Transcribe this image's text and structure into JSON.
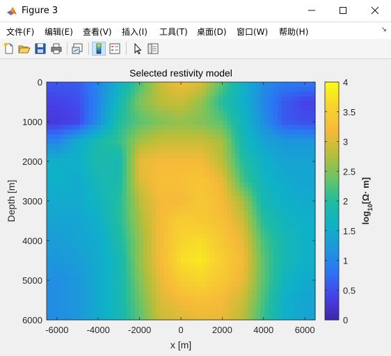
{
  "window": {
    "title": "Figure 3",
    "minimize_icon": "minimize-icon",
    "maximize_icon": "maximize-icon",
    "close_icon": "close-icon"
  },
  "menu": {
    "items": [
      "文件(F)",
      "编辑(E)",
      "查看(V)",
      "插入(I)",
      "工具(T)",
      "桌面(D)",
      "窗口(W)",
      "帮助(H)"
    ]
  },
  "toolbar": {
    "icons": [
      "new-figure-icon",
      "open-file-icon",
      "save-icon",
      "print-icon",
      "link-plot-icon",
      "insert-colorbar-icon",
      "insert-legend-icon",
      "pointer-icon",
      "property-inspector-icon"
    ]
  },
  "chart_data": {
    "type": "heatmap",
    "title": "Selected restivity model",
    "xlabel": "x [m]",
    "ylabel": "Depth [m]",
    "xlim": [
      -6500,
      6500
    ],
    "ylim": [
      0,
      6000
    ],
    "y_reversed": true,
    "xticks": [
      -6000,
      -4000,
      -2000,
      0,
      2000,
      4000,
      6000
    ],
    "yticks": [
      0,
      1000,
      2000,
      3000,
      4000,
      5000,
      6000
    ],
    "colorbar": {
      "label": "log10[Ω·m]",
      "label_base": "log",
      "label_sub": "10",
      "label_rest": "[Ω· m]",
      "range": [
        0,
        4
      ],
      "ticks": [
        0,
        0.5,
        1,
        1.5,
        2,
        2.5,
        3,
        3.5,
        4
      ],
      "colormap": "parula"
    },
    "x_centers": [
      -6000,
      -5000,
      -4000,
      -3000,
      -2000,
      -1000,
      0,
      1000,
      2000,
      3000,
      4000,
      5000,
      6000
    ],
    "y_centers": [
      0,
      500,
      1000,
      1500,
      2000,
      2500,
      3000,
      3500,
      4000,
      4500,
      5000,
      5500,
      6000
    ],
    "values": [
      [
        0.6,
        0.6,
        1.0,
        1.6,
        2.2,
        2.9,
        3.2,
        3.0,
        2.3,
        1.6,
        1.1,
        0.9,
        0.9
      ],
      [
        0.4,
        0.5,
        1.0,
        1.8,
        2.5,
        2.8,
        2.9,
        2.6,
        2.0,
        1.6,
        1.0,
        0.6,
        0.4
      ],
      [
        0.3,
        0.4,
        1.1,
        2.0,
        2.3,
        2.5,
        2.6,
        2.5,
        2.3,
        1.7,
        1.1,
        0.6,
        0.5
      ],
      [
        1.0,
        1.5,
        1.9,
        2.1,
        2.7,
        2.9,
        2.9,
        2.9,
        2.7,
        1.8,
        1.4,
        1.2,
        1.2
      ],
      [
        1.6,
        1.6,
        1.9,
        1.8,
        3.1,
        3.2,
        3.2,
        3.2,
        2.8,
        2.0,
        1.6,
        1.4,
        1.4
      ],
      [
        1.6,
        1.5,
        1.8,
        1.9,
        3.0,
        3.3,
        3.3,
        3.4,
        3.1,
        2.2,
        1.7,
        1.5,
        1.4
      ],
      [
        1.5,
        1.5,
        1.7,
        2.0,
        2.8,
        3.2,
        3.2,
        3.4,
        3.2,
        2.7,
        1.8,
        1.6,
        1.5
      ],
      [
        1.4,
        1.4,
        1.6,
        2.0,
        2.7,
        3.2,
        3.5,
        3.4,
        3.3,
        2.9,
        2.0,
        1.7,
        1.6
      ],
      [
        1.3,
        1.4,
        1.5,
        1.9,
        2.6,
        3.2,
        3.6,
        3.7,
        3.4,
        3.1,
        2.2,
        1.8,
        1.6
      ],
      [
        1.2,
        1.3,
        1.5,
        1.8,
        2.6,
        3.2,
        3.7,
        3.8,
        3.5,
        3.2,
        2.3,
        1.8,
        1.6
      ],
      [
        1.1,
        1.2,
        1.5,
        1.8,
        2.5,
        3.1,
        3.5,
        3.6,
        3.4,
        3.1,
        2.3,
        1.7,
        1.5
      ],
      [
        1.1,
        1.2,
        1.5,
        1.8,
        2.4,
        3.0,
        3.2,
        3.3,
        3.2,
        2.9,
        2.2,
        1.6,
        1.4
      ],
      [
        1.1,
        1.2,
        1.5,
        1.8,
        2.3,
        2.9,
        3.0,
        3.1,
        3.1,
        2.8,
        2.1,
        1.6,
        1.4
      ]
    ]
  }
}
